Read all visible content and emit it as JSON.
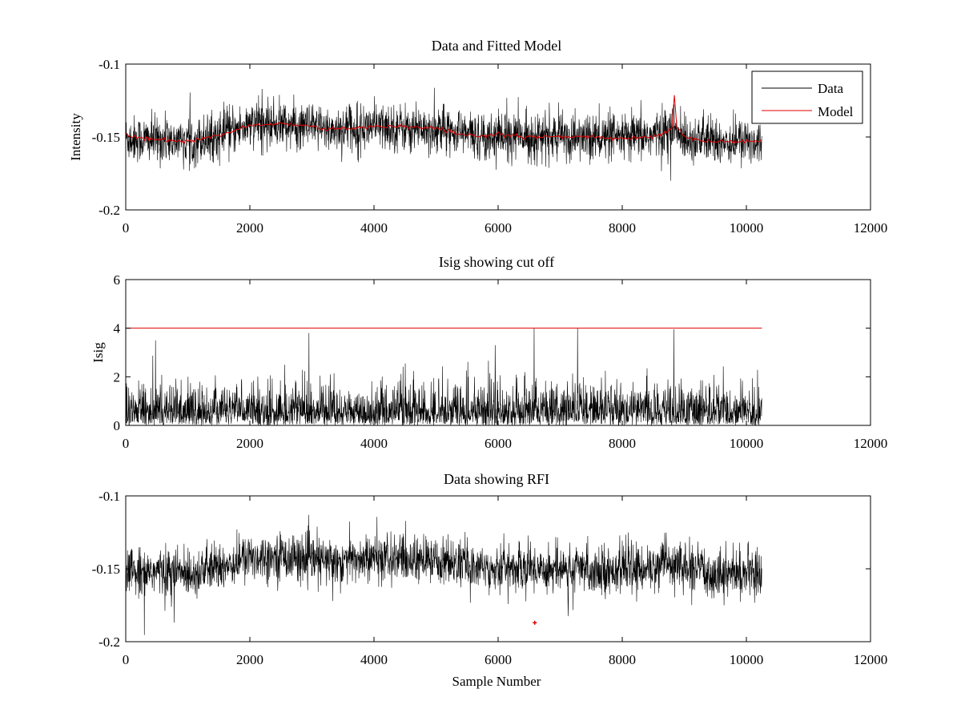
{
  "chart_data": [
    {
      "id": "top",
      "type": "line",
      "title": "Data and Fitted Model",
      "xlabel": "",
      "ylabel": "Intensity",
      "xlim": [
        0,
        12000
      ],
      "ylim": [
        -0.2,
        -0.1
      ],
      "xticks": [
        0,
        2000,
        4000,
        6000,
        8000,
        10000,
        12000
      ],
      "xtick_labels": [
        "0",
        "2000",
        "4000",
        "6000",
        "8000",
        "10000",
        "12000"
      ],
      "yticks": [
        -0.2,
        -0.15,
        -0.1
      ],
      "ytick_labels": [
        "-0.2",
        "-0.15",
        "-0.1"
      ],
      "n_samples": 10250,
      "legend": {
        "position": "top-right",
        "entries": [
          "Data",
          "Model"
        ]
      },
      "series": [
        {
          "name": "Data",
          "color": "#000000",
          "kind": "noisy",
          "noise_sd": 0.008,
          "baseline_x": [
            0,
            1000,
            1500,
            2000,
            2500,
            3200,
            4000,
            4800,
            5200,
            5600,
            6000,
            7000,
            8000,
            8500,
            8750,
            9000,
            9500,
            10250
          ],
          "baseline_y": [
            -0.151,
            -0.153,
            -0.149,
            -0.142,
            -0.141,
            -0.145,
            -0.143,
            -0.144,
            -0.145,
            -0.149,
            -0.149,
            -0.15,
            -0.151,
            -0.149,
            -0.145,
            -0.15,
            -0.153,
            -0.153
          ]
        },
        {
          "name": "Model",
          "color": "#e00000",
          "kind": "smooth",
          "x": [
            0,
            500,
            1000,
            1500,
            2000,
            2500,
            3000,
            3200,
            3500,
            4000,
            4500,
            5000,
            5200,
            5300,
            5600,
            5900,
            6000,
            6100,
            6500,
            7000,
            7500,
            8000,
            8500,
            8700,
            8800,
            8840,
            8880,
            9000,
            9300,
            9500,
            10000,
            10250
          ],
          "y": [
            -0.149,
            -0.152,
            -0.153,
            -0.149,
            -0.142,
            -0.141,
            -0.142,
            -0.145,
            -0.144,
            -0.143,
            -0.143,
            -0.144,
            -0.146,
            -0.148,
            -0.149,
            -0.149,
            -0.147,
            -0.149,
            -0.15,
            -0.15,
            -0.15,
            -0.151,
            -0.15,
            -0.147,
            -0.143,
            -0.121,
            -0.143,
            -0.15,
            -0.152,
            -0.153,
            -0.153,
            -0.153
          ]
        }
      ]
    },
    {
      "id": "mid",
      "type": "line",
      "title": "Isig showing cut off",
      "xlabel": "",
      "ylabel": "Isig",
      "xlim": [
        0,
        12000
      ],
      "ylim": [
        0,
        6
      ],
      "xticks": [
        0,
        2000,
        4000,
        6000,
        8000,
        10000,
        12000
      ],
      "xtick_labels": [
        "0",
        "2000",
        "4000",
        "6000",
        "8000",
        "10000",
        "12000"
      ],
      "yticks": [
        0,
        2,
        4,
        6
      ],
      "ytick_labels": [
        "0",
        "2",
        "4",
        "6"
      ],
      "n_samples": 10250,
      "series": [
        {
          "name": "Isig",
          "color": "#000000",
          "kind": "abs-noise",
          "scale": 0.8,
          "spikes_x": [
            480,
            2950,
            5950,
            6580,
            7280,
            8830
          ],
          "spikes_y": [
            3.5,
            3.8,
            3.3,
            4.0,
            4.0,
            3.95
          ]
        },
        {
          "name": "Cut off",
          "color": "#e00000",
          "kind": "hline",
          "y": 4,
          "x": [
            0,
            10250
          ]
        }
      ]
    },
    {
      "id": "bot",
      "type": "line",
      "title": "Data showing RFI",
      "xlabel": "Sample Number",
      "ylabel": "",
      "xlim": [
        0,
        12000
      ],
      "ylim": [
        -0.2,
        -0.1
      ],
      "xticks": [
        0,
        2000,
        4000,
        6000,
        8000,
        10000,
        12000
      ],
      "xtick_labels": [
        "0",
        "2000",
        "4000",
        "6000",
        "8000",
        "10000",
        "12000"
      ],
      "yticks": [
        -0.2,
        -0.15,
        -0.1
      ],
      "ytick_labels": [
        "-0.2",
        "-0.15",
        "-0.1"
      ],
      "n_samples": 10250,
      "series": [
        {
          "name": "Data",
          "color": "#000000",
          "kind": "noisy",
          "noise_sd": 0.008,
          "baseline_x": [
            0,
            1000,
            1500,
            2000,
            2500,
            3200,
            4000,
            4800,
            5200,
            5600,
            6000,
            7000,
            8000,
            8500,
            8750,
            9000,
            9500,
            10250
          ],
          "baseline_y": [
            -0.151,
            -0.153,
            -0.149,
            -0.142,
            -0.141,
            -0.145,
            -0.143,
            -0.144,
            -0.145,
            -0.149,
            -0.149,
            -0.15,
            -0.151,
            -0.149,
            -0.145,
            -0.15,
            -0.153,
            -0.153
          ]
        },
        {
          "name": "RFI",
          "color": "#e00000",
          "kind": "markers",
          "x": [
            6590
          ],
          "y": [
            -0.187
          ]
        }
      ]
    }
  ]
}
